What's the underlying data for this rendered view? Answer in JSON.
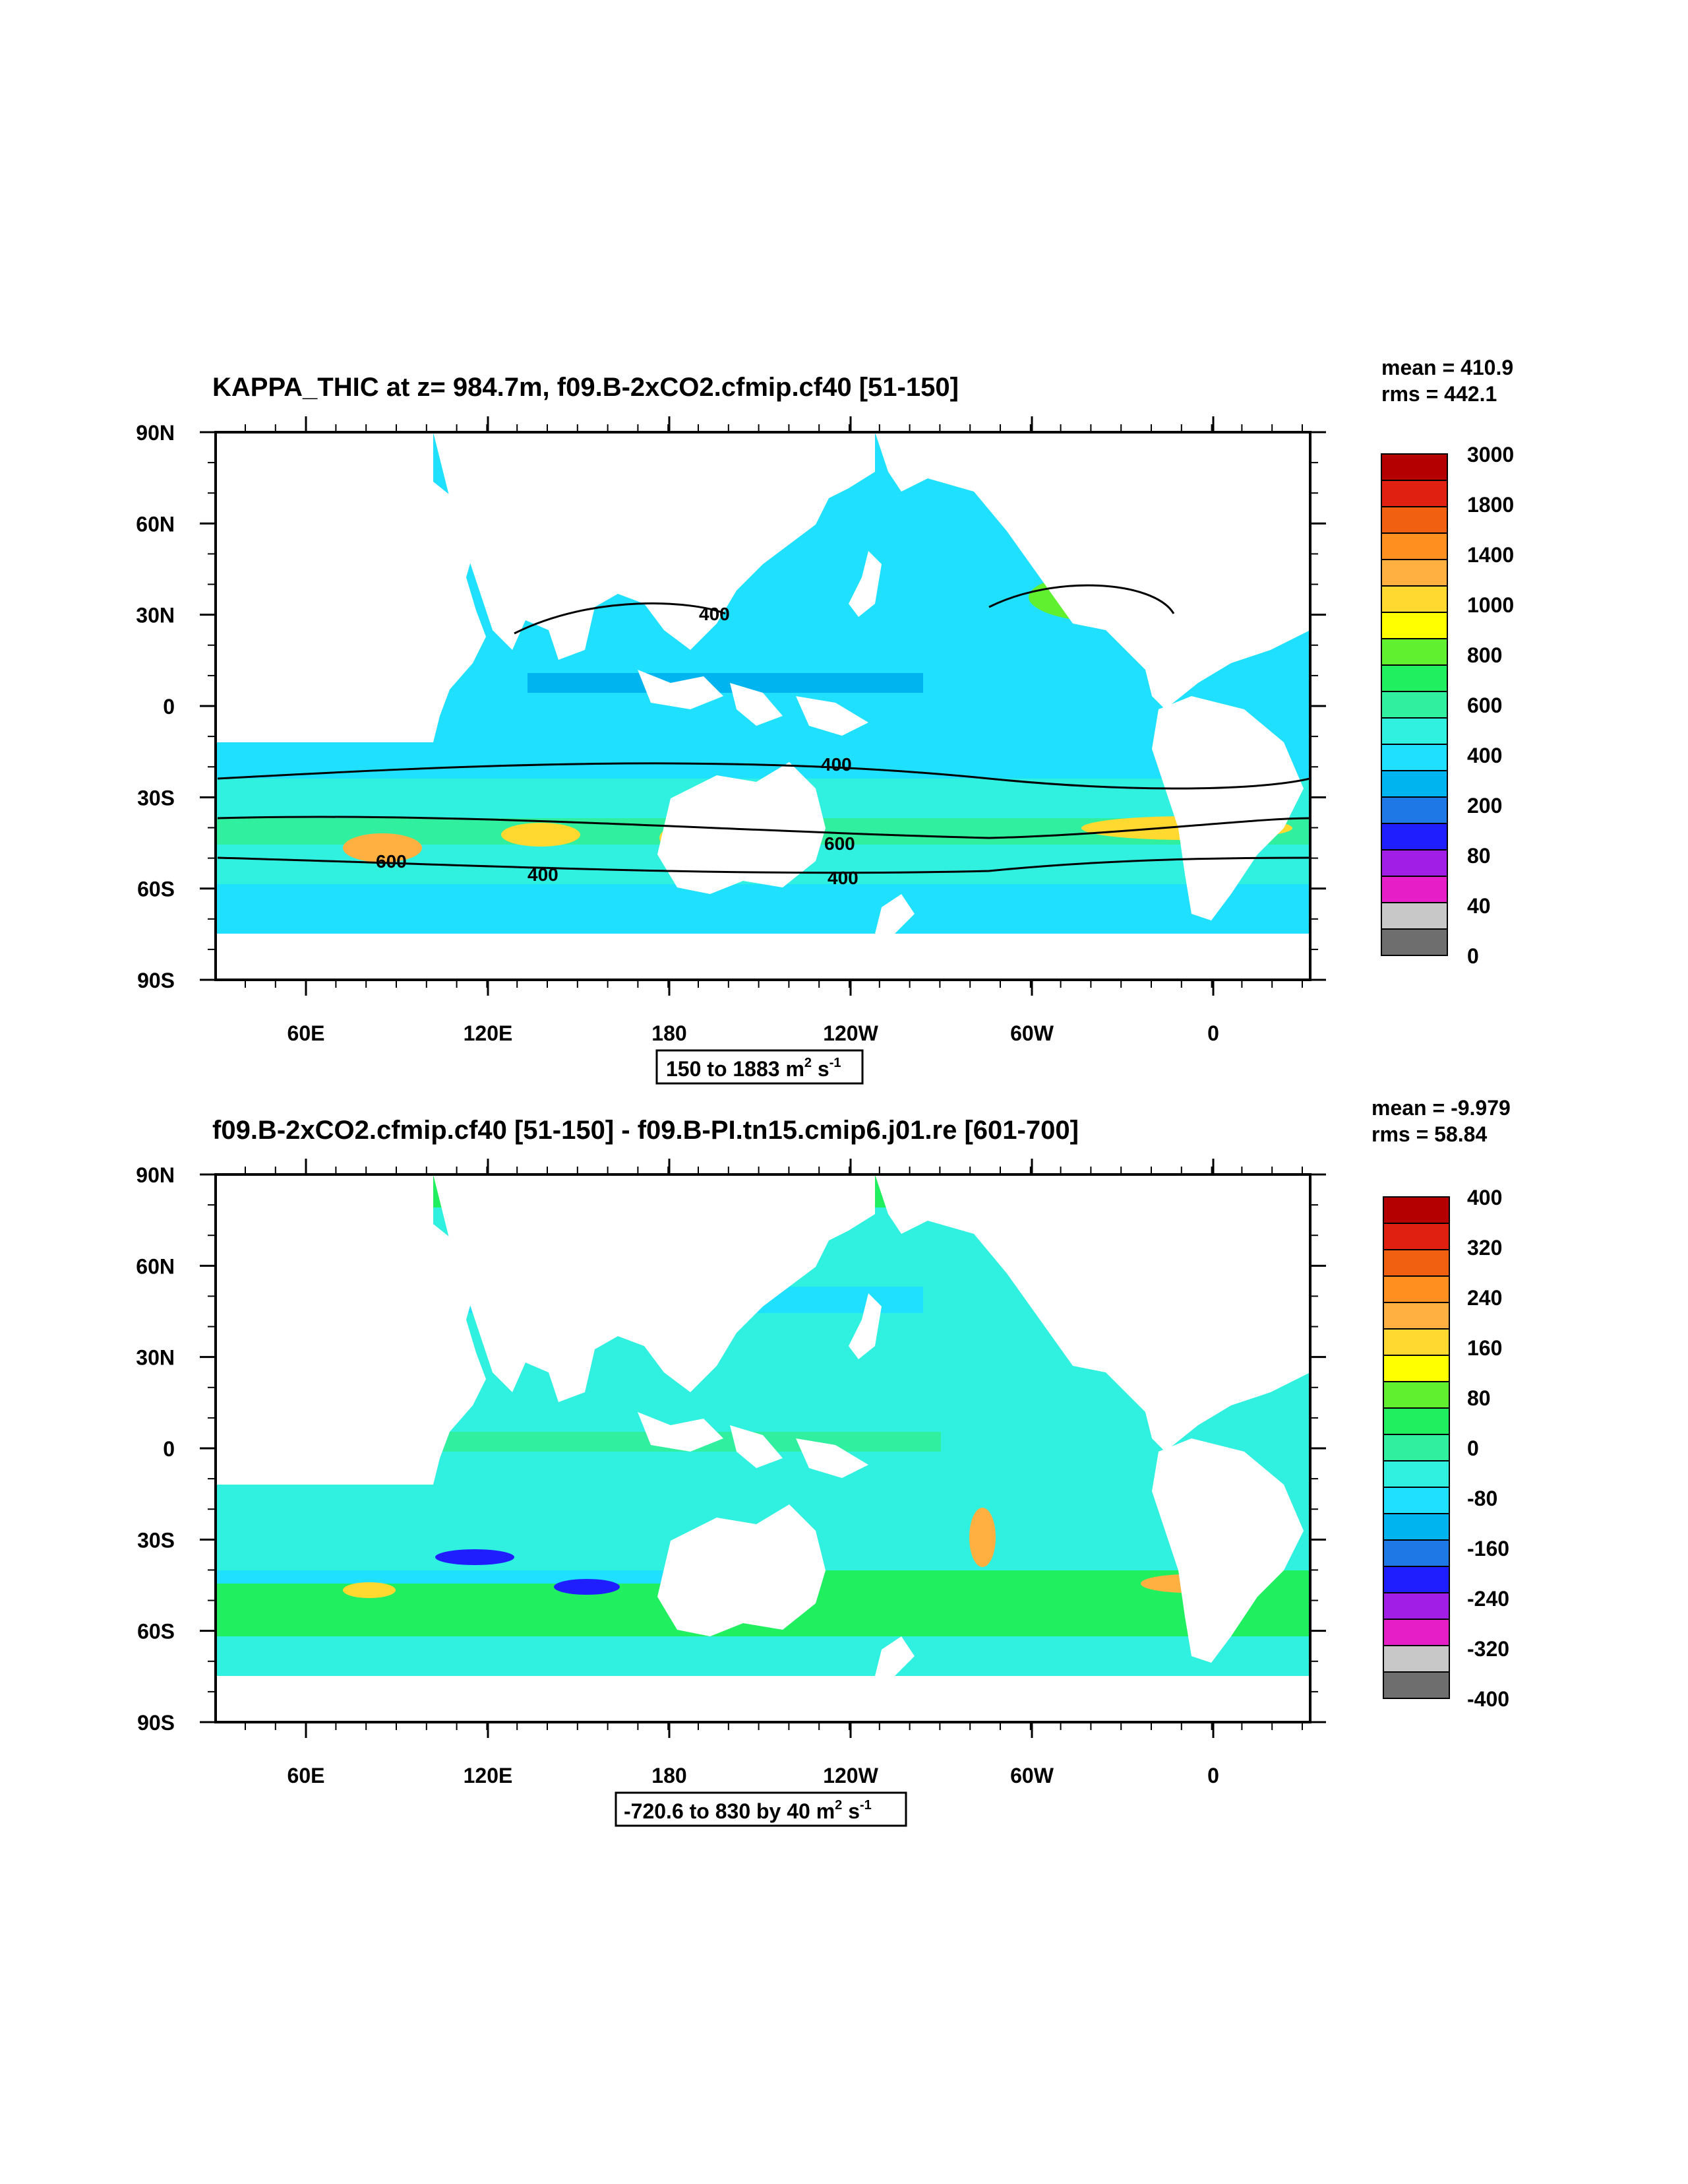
{
  "colors": {
    "land": "#ffffff",
    "axis": "#000000",
    "top_palette": [
      "#6e6e6e",
      "#c8c8c8",
      "#e61ec8",
      "#a01ee6",
      "#1e1eff",
      "#1e78e6",
      "#00b4f0",
      "#20e0ff",
      "#30f0e0",
      "#30f0a0",
      "#20f060",
      "#60f030",
      "#ffff00",
      "#ffd830",
      "#ffb040",
      "#ff9020",
      "#f06010",
      "#e02010",
      "#b40000"
    ],
    "bottom_palette": [
      "#6e6e6e",
      "#c8c8c8",
      "#e61ec8",
      "#a01ee6",
      "#1e1eff",
      "#1e78e6",
      "#00b4f0",
      "#20e0ff",
      "#30f0e0",
      "#30f0a0",
      "#20f060",
      "#60f030",
      "#ffff00",
      "#ffd830",
      "#ffb040",
      "#ff9020",
      "#f06010",
      "#e02010",
      "#b40000"
    ]
  },
  "axes": {
    "lon_ticks": [
      "60E",
      "120E",
      "180",
      "120W",
      "60W",
      "0"
    ],
    "lat_ticks": [
      "90N",
      "60N",
      "30N",
      "0",
      "30S",
      "60S",
      "90S"
    ]
  },
  "panel_top": {
    "title": "KAPPA_THIC at z= 984.7m, f09.B-2xCO2.cfmip.cf40 [51-150]",
    "mean": "mean = 410.9",
    "rms": "rms = 442.1",
    "range_text": "150 to 1883 m",
    "range_sup1": "2",
    "range_mid": " s",
    "range_sup2": "-1",
    "colorbar_labels": [
      "3000",
      "1800",
      "1400",
      "1000",
      "800",
      "600",
      "400",
      "200",
      "80",
      "40",
      "0"
    ],
    "contour_labels": [
      "400",
      "400",
      "600",
      "400",
      "600",
      "400"
    ]
  },
  "panel_bottom": {
    "title": "f09.B-2xCO2.cfmip.cf40 [51-150] - f09.B-PI.tn15.cmip6.j01.re [601-700]",
    "mean": "mean = -9.979",
    "rms": "rms = 58.84",
    "range_text": "-720.6 to 830 by 40 m",
    "range_sup1": "2",
    "range_mid": " s",
    "range_sup2": "-1",
    "colorbar_labels": [
      "400",
      "320",
      "240",
      "160",
      "80",
      "0",
      "-80",
      "-160",
      "-240",
      "-320",
      "-400"
    ]
  }
}
